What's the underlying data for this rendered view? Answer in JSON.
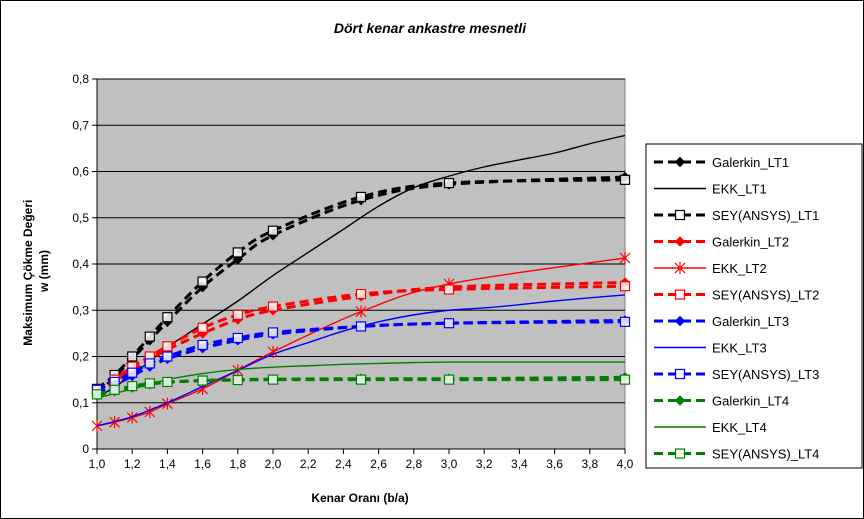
{
  "chart_data": {
    "type": "line",
    "title": "Dört kenar ankastre mesnetli",
    "xlabel": "Kenar Oranı (b/a)",
    "ylabel_lines": [
      "Maksimum Çökme Değeri",
      "w (mm)"
    ],
    "xlim": [
      1.0,
      4.0
    ],
    "ylim": [
      0,
      0.8
    ],
    "x_ticks": [
      "1,0",
      "1,2",
      "1,4",
      "1,6",
      "1,8",
      "2,0",
      "2,2",
      "2,4",
      "2,6",
      "2,8",
      "3,0",
      "3,2",
      "3,4",
      "3,6",
      "3,8",
      "4,0"
    ],
    "y_ticks": [
      "0",
      "0,1",
      "0,2",
      "0,3",
      "0,4",
      "0,5",
      "0,6",
      "0,7",
      "0,8"
    ],
    "grid": "horizontal",
    "plot_background": "#c0c0c0",
    "legend_position": "right",
    "series": [
      {
        "name": "Galerkin_LT1",
        "color": "#000000",
        "dashed": true,
        "marker": "diamond",
        "x": [
          1.0,
          1.1,
          1.2,
          1.3,
          1.4,
          1.6,
          1.8,
          2.0,
          2.5,
          3.0,
          4.0
        ],
        "y": [
          0.12,
          0.155,
          0.195,
          0.235,
          0.275,
          0.35,
          0.41,
          0.462,
          0.538,
          0.572,
          0.588
        ]
      },
      {
        "name": "EKK_LT1",
        "color": "#000000",
        "dashed": false,
        "marker": "none",
        "x": [
          1.0,
          1.2,
          1.4,
          1.6,
          1.8,
          2.0,
          2.2,
          2.4,
          2.6,
          2.8,
          3.0,
          3.2,
          3.4,
          3.6,
          3.8,
          4.0
        ],
        "y": [
          0.11,
          0.16,
          0.22,
          0.27,
          0.32,
          0.375,
          0.425,
          0.475,
          0.525,
          0.565,
          0.59,
          0.61,
          0.625,
          0.64,
          0.66,
          0.678
        ]
      },
      {
        "name": "SEY(ANSYS)_LT1",
        "color": "#000000",
        "dashed": true,
        "marker": "square",
        "x": [
          1.0,
          1.1,
          1.2,
          1.3,
          1.4,
          1.6,
          1.8,
          2.0,
          2.5,
          3.0,
          4.0
        ],
        "y": [
          0.13,
          0.16,
          0.2,
          0.243,
          0.285,
          0.362,
          0.425,
          0.472,
          0.545,
          0.575,
          0.582
        ]
      },
      {
        "name": "Galerkin_LT2",
        "color": "#ff0000",
        "dashed": true,
        "marker": "diamond",
        "x": [
          1.0,
          1.1,
          1.2,
          1.3,
          1.4,
          1.6,
          1.8,
          2.0,
          2.5,
          3.0,
          4.0
        ],
        "y": [
          0.12,
          0.145,
          0.17,
          0.193,
          0.215,
          0.25,
          0.28,
          0.3,
          0.33,
          0.35,
          0.36
        ]
      },
      {
        "name": "EKK_LT2",
        "color": "#ff0000",
        "dashed": false,
        "marker": "star",
        "x": [
          1.0,
          1.1,
          1.2,
          1.3,
          1.4,
          1.6,
          1.8,
          2.0,
          2.5,
          3.0,
          4.0
        ],
        "y": [
          0.05,
          0.058,
          0.068,
          0.08,
          0.098,
          0.13,
          0.17,
          0.21,
          0.297,
          0.357,
          0.413
        ]
      },
      {
        "name": "SEY(ANSYS)_LT2",
        "color": "#ff0000",
        "dashed": true,
        "marker": "square",
        "x": [
          1.0,
          1.1,
          1.2,
          1.3,
          1.4,
          1.6,
          1.8,
          2.0,
          2.5,
          3.0,
          4.0
        ],
        "y": [
          0.125,
          0.15,
          0.178,
          0.2,
          0.222,
          0.262,
          0.29,
          0.308,
          0.335,
          0.345,
          0.352
        ]
      },
      {
        "name": "Galerkin_LT3",
        "color": "#0000ff",
        "dashed": true,
        "marker": "diamond",
        "x": [
          1.0,
          1.1,
          1.2,
          1.3,
          1.4,
          1.6,
          1.8,
          2.0,
          2.5,
          3.0,
          4.0
        ],
        "y": [
          0.12,
          0.138,
          0.158,
          0.178,
          0.195,
          0.218,
          0.235,
          0.248,
          0.265,
          0.272,
          0.278
        ]
      },
      {
        "name": "EKK_LT3",
        "color": "#0000ff",
        "dashed": false,
        "marker": "none",
        "x": [
          1.0,
          1.2,
          1.4,
          1.6,
          1.8,
          2.0,
          2.2,
          2.4,
          2.6,
          2.8,
          3.0,
          3.2,
          3.4,
          3.6,
          3.8,
          4.0
        ],
        "y": [
          0.05,
          0.07,
          0.1,
          0.135,
          0.17,
          0.205,
          0.23,
          0.255,
          0.275,
          0.29,
          0.3,
          0.305,
          0.312,
          0.32,
          0.327,
          0.333
        ]
      },
      {
        "name": "SEY(ANSYS)_LT3",
        "color": "#0000ff",
        "dashed": true,
        "marker": "square",
        "x": [
          1.0,
          1.1,
          1.2,
          1.3,
          1.4,
          1.6,
          1.8,
          2.0,
          2.5,
          3.0,
          4.0
        ],
        "y": [
          0.128,
          0.145,
          0.165,
          0.185,
          0.2,
          0.225,
          0.24,
          0.252,
          0.265,
          0.272,
          0.275
        ]
      },
      {
        "name": "Galerkin_LT4",
        "color": "#008000",
        "dashed": true,
        "marker": "diamond",
        "x": [
          1.0,
          1.1,
          1.2,
          1.3,
          1.4,
          1.6,
          1.8,
          2.0,
          2.5,
          3.0,
          4.0
        ],
        "y": [
          0.115,
          0.125,
          0.133,
          0.14,
          0.144,
          0.148,
          0.15,
          0.151,
          0.152,
          0.152,
          0.155
        ]
      },
      {
        "name": "EKK_LT4",
        "color": "#008000",
        "dashed": false,
        "marker": "none",
        "x": [
          1.0,
          1.2,
          1.4,
          1.6,
          1.8,
          2.0,
          2.2,
          2.4,
          2.6,
          2.8,
          3.0,
          3.2,
          3.4,
          3.6,
          3.8,
          4.0
        ],
        "y": [
          0.11,
          0.13,
          0.15,
          0.163,
          0.172,
          0.177,
          0.18,
          0.183,
          0.185,
          0.187,
          0.188,
          0.188,
          0.188,
          0.188,
          0.188,
          0.188
        ]
      },
      {
        "name": "SEY(ANSYS)_LT4",
        "color": "#008000",
        "dashed": true,
        "marker": "square",
        "x": [
          1.0,
          1.1,
          1.2,
          1.3,
          1.4,
          1.6,
          1.8,
          2.0,
          2.5,
          3.0,
          4.0
        ],
        "y": [
          0.118,
          0.128,
          0.136,
          0.142,
          0.145,
          0.148,
          0.149,
          0.15,
          0.15,
          0.15,
          0.15
        ]
      }
    ]
  }
}
